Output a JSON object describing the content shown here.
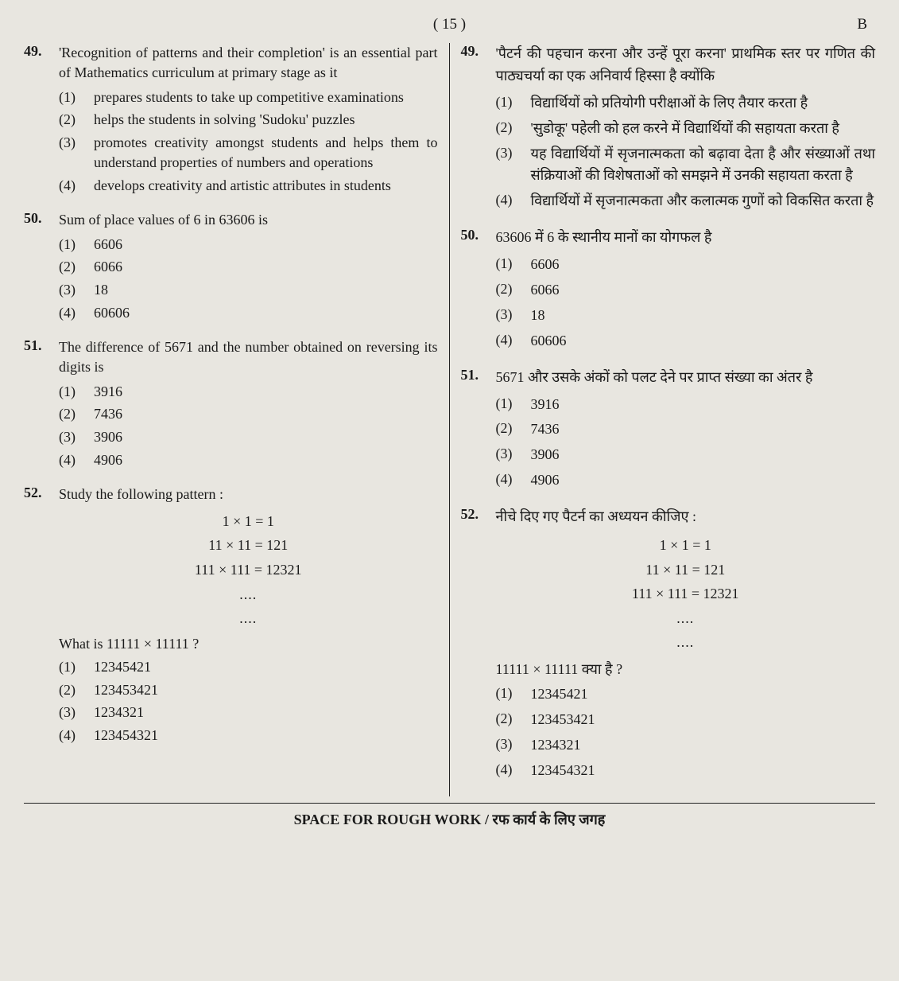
{
  "page": {
    "number": "( 15 )",
    "set": "B"
  },
  "footer": "SPACE FOR ROUGH WORK / रफ कार्य के लिए जगह",
  "left": {
    "q49": {
      "num": "49.",
      "text": "'Recognition of patterns and their completion' is an essential part of Mathematics curriculum at primary stage as it",
      "opts": {
        "n1": "(1)",
        "t1": "prepares students to take up competitive examinations",
        "n2": "(2)",
        "t2": "helps the students in solving 'Sudoku' puzzles",
        "n3": "(3)",
        "t3": "promotes creativity amongst students and helps them to understand properties of numbers and operations",
        "n4": "(4)",
        "t4": "develops creativity and artistic attributes in students"
      }
    },
    "q50": {
      "num": "50.",
      "text": "Sum of place values of 6 in 63606 is",
      "opts": {
        "n1": "(1)",
        "t1": "6606",
        "n2": "(2)",
        "t2": "6066",
        "n3": "(3)",
        "t3": "18",
        "n4": "(4)",
        "t4": "60606"
      }
    },
    "q51": {
      "num": "51.",
      "text": "The difference of 5671 and the number obtained on reversing its digits is",
      "opts": {
        "n1": "(1)",
        "t1": "3916",
        "n2": "(2)",
        "t2": "7436",
        "n3": "(3)",
        "t3": "3906",
        "n4": "(4)",
        "t4": "4906"
      }
    },
    "q52": {
      "num": "52.",
      "text": "Study the following pattern :",
      "pattern": {
        "l1": "1 × 1 = 1",
        "l2": "11 × 11 = 121",
        "l3": "111 × 111 = 12321",
        "l4": "....",
        "l5": "...."
      },
      "sub": "What is  11111 × 11111 ?",
      "opts": {
        "n1": "(1)",
        "t1": "12345421",
        "n2": "(2)",
        "t2": "123453421",
        "n3": "(3)",
        "t3": "1234321",
        "n4": "(4)",
        "t4": "123454321"
      }
    }
  },
  "right": {
    "q49": {
      "num": "49.",
      "text": "'पैटर्न की पहचान करना और उन्हें पूरा करना' प्राथमिक स्तर पर गणित की पाठ्यचर्या का एक अनिवार्य हिस्सा है क्योंकि",
      "opts": {
        "n1": "(1)",
        "t1": "विद्यार्थियों को प्रतियोगी परीक्षाओं के लिए तैयार करता है",
        "n2": "(2)",
        "t2": "'सुडोकू' पहेली को हल करने में विद्यार्थियों की सहायता करता है",
        "n3": "(3)",
        "t3": "यह विद्यार्थियों में सृजनात्मकता को बढ़ावा देता है और संख्याओं तथा संक्रियाओं की विशेषताओं को समझने में उनकी सहायता करता है",
        "n4": "(4)",
        "t4": "विद्यार्थियों में सृजनात्मकता और कलात्मक गुणों को विकसित करता है"
      }
    },
    "q50": {
      "num": "50.",
      "text": "63606 में 6 के स्थानीय मानों का योगफल है",
      "opts": {
        "n1": "(1)",
        "t1": "6606",
        "n2": "(2)",
        "t2": "6066",
        "n3": "(3)",
        "t3": "18",
        "n4": "(4)",
        "t4": "60606"
      }
    },
    "q51": {
      "num": "51.",
      "text": "5671 और उसके अंकों को पलट देने पर प्राप्त संख्या का अंतर है",
      "opts": {
        "n1": "(1)",
        "t1": "3916",
        "n2": "(2)",
        "t2": "7436",
        "n3": "(3)",
        "t3": "3906",
        "n4": "(4)",
        "t4": "4906"
      }
    },
    "q52": {
      "num": "52.",
      "text": "नीचे दिए गए पैटर्न का अध्ययन कीजिए :",
      "pattern": {
        "l1": "1 × 1 = 1",
        "l2": "11 × 11 = 121",
        "l3": "111 × 111 = 12321",
        "l4": "....",
        "l5": "...."
      },
      "sub": "11111 × 11111 क्या है ?",
      "opts": {
        "n1": "(1)",
        "t1": "12345421",
        "n2": "(2)",
        "t2": "123453421",
        "n3": "(3)",
        "t3": "1234321",
        "n4": "(4)",
        "t4": "123454321"
      }
    }
  }
}
